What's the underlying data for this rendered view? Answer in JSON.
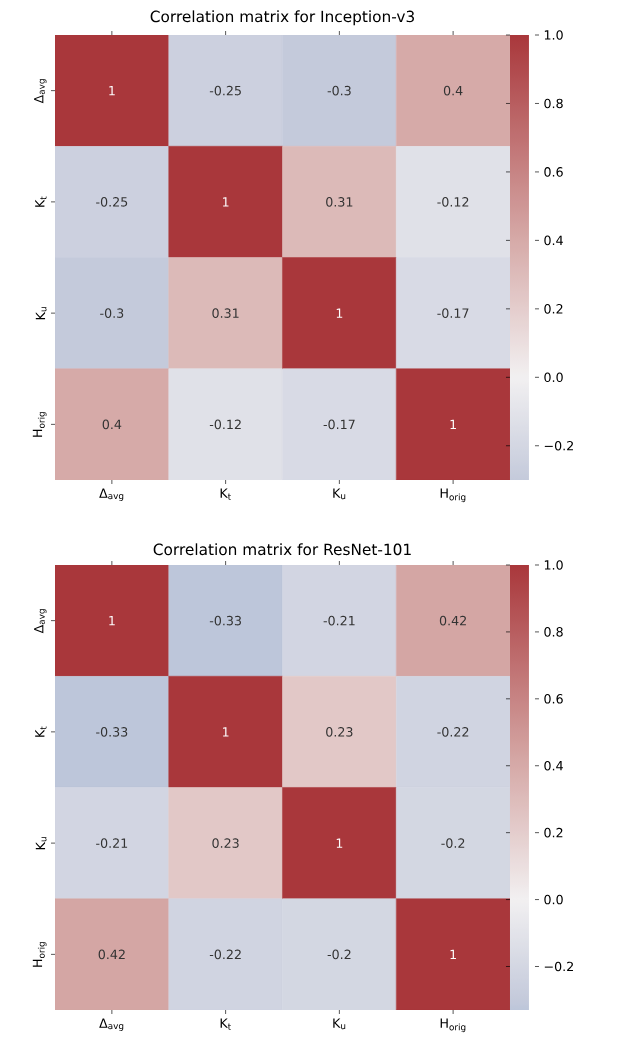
{
  "chart_data": [
    {
      "type": "heatmap",
      "title": "Correlation matrix for Inception-v3",
      "categories": [
        "Δ$_{avg}$",
        "K$_{t}$",
        "K$_{u}$",
        "H$_{orig}$"
      ],
      "y_categories": [
        "Δ$_{avg}$",
        "K$_{t}$",
        "K$_{u}$",
        "H$_{orig}$"
      ],
      "cells": [
        [
          1,
          -0.25,
          -0.3,
          0.4
        ],
        [
          -0.25,
          1,
          0.31,
          -0.12
        ],
        [
          -0.3,
          0.31,
          1,
          -0.17
        ],
        [
          0.4,
          -0.12,
          -0.17,
          1
        ]
      ],
      "data_labels": true,
      "clim": [
        -0.3,
        1
      ],
      "cticks": [
        {
          "value": -0.2,
          "label": "−0.2"
        },
        {
          "value": 0,
          "label": "0.0"
        },
        {
          "value": 0.2,
          "label": "0.2"
        },
        {
          "value": 0.4,
          "label": "0.4"
        },
        {
          "value": 0.6,
          "label": "0.6"
        },
        {
          "value": 0.8,
          "label": "0.8"
        },
        {
          "value": 1,
          "label": "1.0"
        }
      ]
    },
    {
      "type": "heatmap",
      "title": "Correlation matrix for ResNet-101",
      "categories": [
        "Δ$_{avg}$",
        "K$_{t}$",
        "K$_{u}$",
        "H$_{orig}$"
      ],
      "y_categories": [
        "Δ$_{avg}$",
        "K$_{t}$",
        "K$_{u}$",
        "H$_{orig}$"
      ],
      "cells": [
        [
          1,
          -0.33,
          -0.21,
          0.42
        ],
        [
          -0.33,
          1,
          0.23,
          -0.22
        ],
        [
          -0.21,
          0.23,
          1,
          -0.2
        ],
        [
          0.42,
          -0.22,
          -0.2,
          1
        ]
      ],
      "data_labels": true,
      "clim": [
        -0.33,
        1
      ],
      "cticks": [
        {
          "value": -0.2,
          "label": "−0.2"
        },
        {
          "value": 0,
          "label": "0.0"
        },
        {
          "value": 0.2,
          "label": "0.2"
        },
        {
          "value": 0.4,
          "label": "0.4"
        },
        {
          "value": 0.6,
          "label": "0.6"
        },
        {
          "value": 0.8,
          "label": "0.8"
        },
        {
          "value": 1,
          "label": "1.0"
        }
      ]
    }
  ]
}
